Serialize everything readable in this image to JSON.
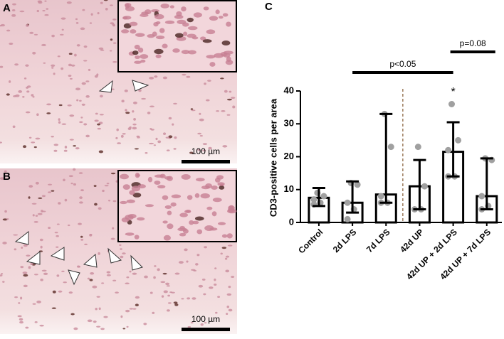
{
  "panels": {
    "a": {
      "label": "A",
      "scale": "100 µm"
    },
    "b": {
      "label": "B",
      "scale": "100 µm"
    },
    "c": {
      "label": "C"
    }
  },
  "chart_data": {
    "type": "bar",
    "ylabel": "CD3-positive cells per area",
    "categories": [
      "Control",
      "2d LPS",
      "7d LPS",
      "42d UP",
      "42d UP + 2d LPS",
      "42d UP + 7d LPS"
    ],
    "values": [
      7.5,
      6,
      8.5,
      11,
      21.5,
      8
    ],
    "error_low": [
      5,
      3,
      6,
      4,
      14,
      4
    ],
    "error_high": [
      10.5,
      12.5,
      33,
      19,
      30.5,
      19.5
    ],
    "points": [
      [
        9,
        8,
        7,
        6,
        5.5
      ],
      [
        12,
        11.5,
        6,
        4,
        1
      ],
      [
        33,
        23,
        8,
        6,
        6
      ],
      [
        23,
        11,
        4,
        4
      ],
      [
        36,
        25,
        22,
        14,
        14
      ],
      [
        19.5,
        19,
        8,
        5,
        4
      ]
    ],
    "color": "#000000",
    "point_color": "#a0a0a0",
    "ylim": [
      0,
      40
    ],
    "yticks": [
      0,
      10,
      20,
      30,
      40
    ],
    "annotations": [
      "p<0.05",
      "p=0.08",
      "*"
    ]
  }
}
